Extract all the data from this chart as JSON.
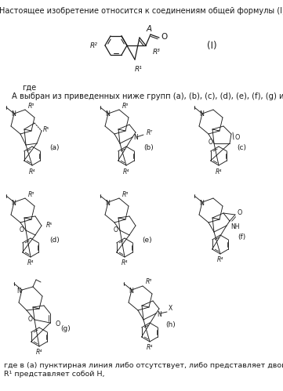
{
  "title": "Настоящее изобретение относится к соединениям общей формулы (I)",
  "where_text": "где",
  "a_text": "А выбран из приведенных ниже групп (a), (b), (c), (d), (e), (f), (g) и (h):",
  "footer1": "где в (a) пунктирная линия либо отсутствует, либо представляет двойную связь;",
  "footer2": "R¹ представляет собой H,",
  "label_I": "(I)",
  "labels": [
    "(a)",
    "(b)",
    "(c)",
    "(d)",
    "(e)",
    "(f)",
    "(g)",
    "(h)"
  ],
  "bg": "#ffffff"
}
